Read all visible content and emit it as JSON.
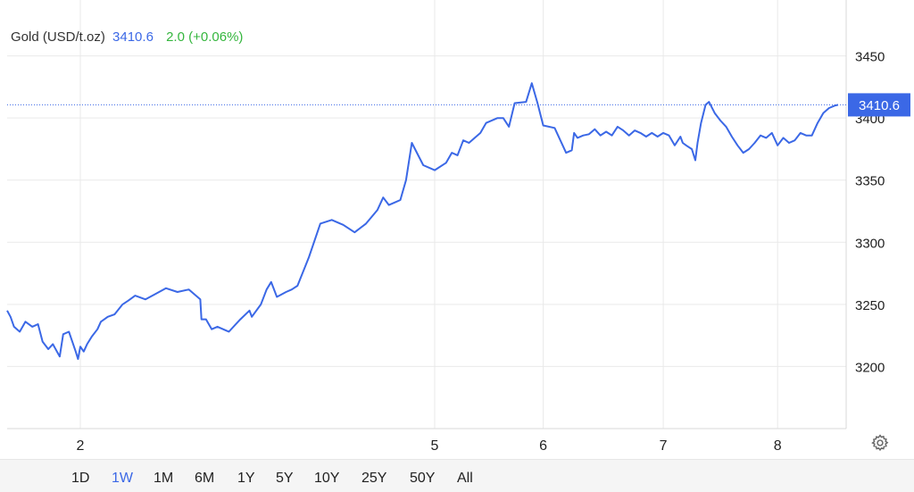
{
  "legend": {
    "name": "Gold (USD/t.oz)",
    "price": "3410.6",
    "change": "2.0 (+0.06%)"
  },
  "colors": {
    "line": "#3b68e6",
    "change_positive": "#35b63e",
    "grid": "#e9e9e9"
  },
  "ranges": [
    "1D",
    "1W",
    "1M",
    "6M",
    "1Y",
    "5Y",
    "10Y",
    "25Y",
    "50Y",
    "All"
  ],
  "active_range": "1W",
  "settings_icon": "gear-icon",
  "chart_data": {
    "type": "line",
    "title": "Gold (USD/t.oz)",
    "xlabel": "",
    "ylabel": "",
    "x_ticks": [
      {
        "label": "2",
        "x": 1.9
      },
      {
        "label": "5",
        "x": 5.0
      },
      {
        "label": "6",
        "x": 5.95
      },
      {
        "label": "7",
        "x": 7.0
      },
      {
        "label": "8",
        "x": 8.0
      }
    ],
    "xlim": [
      1.26,
      8.6
    ],
    "y_ticks": [
      3200,
      3250,
      3300,
      3350,
      3400,
      3450
    ],
    "ylim": [
      3150,
      3495
    ],
    "current_value": 3410.6,
    "current_label": "3410.6",
    "grid": true,
    "series": [
      {
        "x": [
          1.26,
          1.29,
          1.32,
          1.37,
          1.42,
          1.48,
          1.53,
          1.57,
          1.62,
          1.66,
          1.72,
          1.75,
          1.8,
          1.83,
          1.86,
          1.88,
          1.9,
          1.93,
          1.96,
          2.0,
          2.05,
          2.08,
          2.11,
          2.14,
          2.2,
          2.27,
          2.32,
          2.38,
          2.47,
          2.55,
          2.65,
          2.75,
          2.85,
          2.95,
          2.96,
          3.0,
          3.05,
          3.1,
          3.2,
          3.3,
          3.38,
          3.4,
          3.48,
          3.53,
          3.57,
          3.62,
          3.66,
          3.7,
          3.75,
          3.8,
          3.9,
          4.0,
          4.1,
          4.2,
          4.3,
          4.4,
          4.5,
          4.55,
          4.6,
          4.65,
          4.7,
          4.75,
          4.8,
          4.9,
          5.0,
          5.1,
          5.15,
          5.2,
          5.25,
          5.3,
          5.4,
          5.45,
          5.55,
          5.6,
          5.65,
          5.7,
          5.8,
          5.85,
          5.9,
          5.95,
          6.05,
          6.15,
          6.2,
          6.22,
          6.25,
          6.3,
          6.35,
          6.4,
          6.45,
          6.5,
          6.55,
          6.6,
          6.65,
          6.7,
          6.75,
          6.8,
          6.85,
          6.9,
          6.95,
          7.0,
          7.05,
          7.1,
          7.15,
          7.17,
          7.2,
          7.25,
          7.28,
          7.3,
          7.33,
          7.37,
          7.4,
          7.45,
          7.5,
          7.55,
          7.6,
          7.65,
          7.7,
          7.75,
          7.8,
          7.85,
          7.9,
          7.95,
          8.0,
          8.05,
          8.1,
          8.15,
          8.2,
          8.25,
          8.3,
          8.35,
          8.4,
          8.45,
          8.5,
          8.53
        ],
        "values": [
          3245,
          3240,
          3232,
          3228,
          3236,
          3232,
          3234,
          3220,
          3214,
          3218,
          3208,
          3226,
          3228,
          3220,
          3212,
          3206,
          3216,
          3212,
          3218,
          3224,
          3230,
          3236,
          3238,
          3240,
          3242,
          3250,
          3253,
          3257,
          3254,
          3258,
          3263,
          3260,
          3262,
          3254,
          3238,
          3238,
          3230,
          3232,
          3228,
          3238,
          3245,
          3240,
          3250,
          3262,
          3268,
          3256,
          3258,
          3260,
          3262,
          3265,
          3288,
          3315,
          3318,
          3314,
          3308,
          3315,
          3326,
          3336,
          3330,
          3332,
          3334,
          3350,
          3380,
          3362,
          3358,
          3364,
          3372,
          3370,
          3382,
          3380,
          3388,
          3396,
          3400,
          3400,
          3393,
          3412,
          3413,
          3428,
          3412,
          3394,
          3392,
          3372,
          3374,
          3388,
          3384,
          3386,
          3387,
          3391,
          3386,
          3389,
          3386,
          3393,
          3390,
          3386,
          3390,
          3388,
          3385,
          3388,
          3385,
          3388,
          3386,
          3378,
          3385,
          3380,
          3378,
          3375,
          3366,
          3380,
          3396,
          3410.6,
          3413,
          3404,
          3398,
          3393,
          3385,
          3378,
          3372,
          3375,
          3380,
          3386,
          3384,
          3388,
          3378,
          3384,
          3380,
          3382,
          3388,
          3386,
          3386,
          3396,
          3404,
          3408,
          3410,
          3410.6
        ]
      }
    ]
  }
}
